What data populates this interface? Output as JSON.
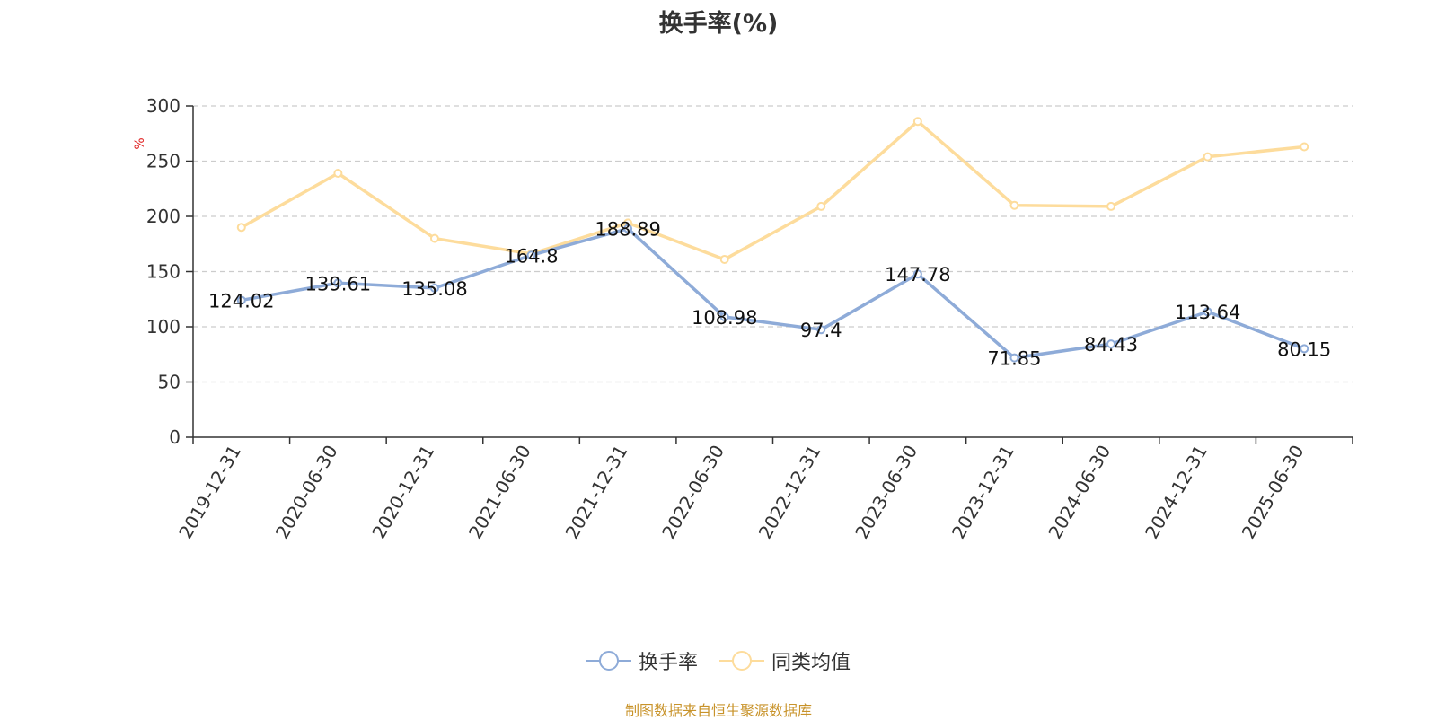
{
  "chart_data": {
    "type": "line",
    "title": "换手率(%)",
    "ylabel": "%",
    "ylim": [
      0,
      300
    ],
    "yticks": [
      0,
      50,
      100,
      150,
      200,
      250,
      300
    ],
    "grid": true,
    "legend_position": "bottom",
    "categories": [
      "2019-12-31",
      "2020-06-30",
      "2020-12-31",
      "2021-06-30",
      "2021-12-31",
      "2022-06-30",
      "2022-12-31",
      "2023-06-30",
      "2023-12-31",
      "2024-06-30",
      "2024-12-31",
      "2025-06-30"
    ],
    "series": [
      {
        "name": "换手率",
        "color": "#8eabd8",
        "labeled": true,
        "values": [
          124.02,
          139.61,
          135.08,
          164.8,
          188.89,
          108.98,
          97.4,
          147.78,
          71.85,
          84.43,
          113.64,
          80.15
        ],
        "labels": [
          "124.02",
          "139.61",
          "135.08",
          "164.8",
          "188.89",
          "108.98",
          "97.4",
          "147.78",
          "71.85",
          "84.43",
          "113.64",
          "80.15"
        ]
      },
      {
        "name": "同类均值",
        "color": "#fddc9c",
        "labeled": false,
        "values": [
          190,
          239,
          180,
          166,
          194,
          161,
          209,
          286,
          210,
          209,
          254,
          263
        ]
      }
    ],
    "source_note": "制图数据来自恒生聚源数据库"
  }
}
